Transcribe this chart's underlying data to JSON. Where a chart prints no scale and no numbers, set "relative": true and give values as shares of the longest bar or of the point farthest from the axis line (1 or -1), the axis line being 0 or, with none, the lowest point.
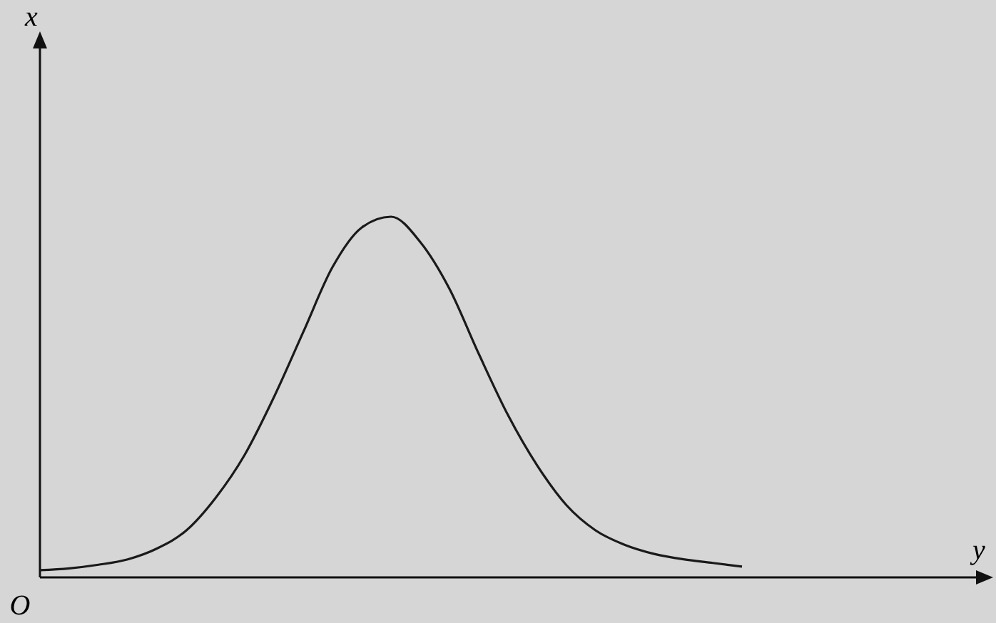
{
  "chart_data": {
    "type": "line",
    "relative": true,
    "annotations": [
      "x",
      "y",
      "O"
    ],
    "color": "#1a1a1a",
    "categories": [
      null,
      null,
      null,
      null,
      null,
      null,
      null,
      null,
      null,
      null,
      null,
      null,
      null,
      null,
      null,
      null,
      null,
      null,
      null,
      null,
      null,
      null,
      null,
      null,
      null
    ],
    "values": [
      0.02,
      0.025,
      0.035,
      0.05,
      0.08,
      0.13,
      0.22,
      0.34,
      0.5,
      0.68,
      0.86,
      0.97,
      1,
      0.93,
      0.8,
      0.62,
      0.45,
      0.31,
      0.2,
      0.13,
      0.09,
      0.065,
      0.05,
      0.04,
      0.03
    ]
  }
}
